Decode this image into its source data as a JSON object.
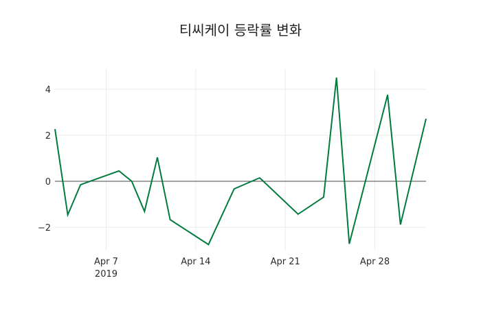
{
  "chart_data": {
    "type": "line",
    "title": "티씨케이 등락률 변화",
    "xlabel": "",
    "ylabel": "",
    "x": [
      "2019-04-03",
      "2019-04-04",
      "2019-04-05",
      "2019-04-08",
      "2019-04-09",
      "2019-04-10",
      "2019-04-11",
      "2019-04-12",
      "2019-04-15",
      "2019-04-17",
      "2019-04-19",
      "2019-04-22",
      "2019-04-24",
      "2019-04-25",
      "2019-04-26",
      "2019-04-29",
      "2019-04-30",
      "2019-05-02"
    ],
    "series": [
      {
        "name": "등락률",
        "color": "#007a3d",
        "values": [
          2.27,
          -1.46,
          -0.15,
          0.45,
          0.0,
          -1.31,
          1.04,
          -1.67,
          -2.75,
          -0.33,
          0.15,
          -1.43,
          -0.69,
          4.51,
          -2.72,
          3.76,
          -1.88,
          2.72
        ]
      }
    ],
    "x_ticks": [
      {
        "label": "Apr 7",
        "sub": "2019",
        "date": "2019-04-07"
      },
      {
        "label": "Apr 14",
        "sub": "",
        "date": "2019-04-14"
      },
      {
        "label": "Apr 21",
        "sub": "",
        "date": "2019-04-21"
      },
      {
        "label": "Apr 28",
        "sub": "",
        "date": "2019-04-28"
      }
    ],
    "y_ticks": [
      {
        "label": "4",
        "value": 4
      },
      {
        "label": "2",
        "value": 2
      },
      {
        "label": "0",
        "value": 0
      },
      {
        "label": "−2",
        "value": -2
      }
    ],
    "xlim": [
      "2019-04-03",
      "2019-05-02"
    ],
    "ylim": [
      -2.9,
      4.9
    ],
    "grid": true,
    "zeroline": true,
    "legend": "none"
  }
}
